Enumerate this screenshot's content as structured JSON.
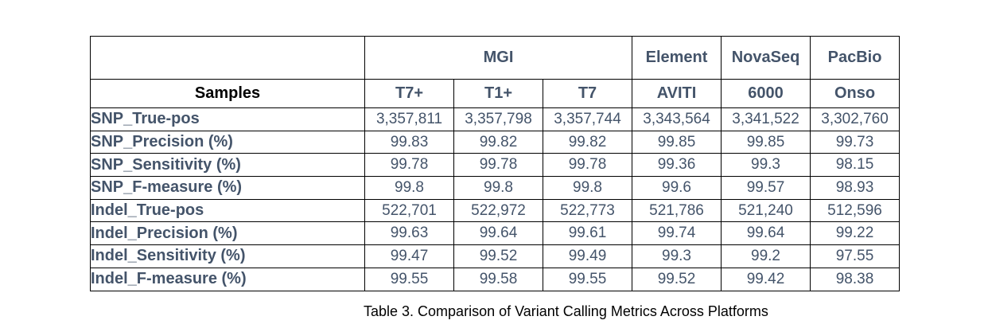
{
  "table": {
    "corner_label": "Samples",
    "platform_headers": {
      "mgi": "MGI",
      "element": "Element",
      "novaseq": "NovaSeq",
      "pacbio": "PacBio"
    },
    "sample_headers": [
      "T7+",
      "T1+",
      "T7",
      "AVITI",
      "6000",
      "Onso"
    ],
    "rows": [
      {
        "label": "SNP_True-pos",
        "values": [
          "3,357,811",
          "3,357,798",
          "3,357,744",
          "3,343,564",
          "3,341,522",
          "3,302,760"
        ]
      },
      {
        "label": "SNP_Precision (%)",
        "values": [
          "99.83",
          "99.82",
          "99.82",
          "99.85",
          "99.85",
          "99.73"
        ]
      },
      {
        "label": "SNP_Sensitivity (%)",
        "values": [
          "99.78",
          "99.78",
          "99.78",
          "99.36",
          "99.3",
          "98.15"
        ]
      },
      {
        "label": "SNP_F-measure (%)",
        "values": [
          "99.8",
          "99.8",
          "99.8",
          "99.6",
          "99.57",
          "98.93"
        ]
      },
      {
        "label": "Indel_True-pos",
        "values": [
          "522,701",
          "522,972",
          "522,773",
          "521,786",
          "521,240",
          "512,596"
        ]
      },
      {
        "label": "Indel_Precision (%)",
        "values": [
          "99.63",
          "99.64",
          "99.61",
          "99.74",
          "99.64",
          "99.22"
        ]
      },
      {
        "label": "Indel_Sensitivity (%)",
        "values": [
          "99.47",
          "99.52",
          "99.49",
          "99.3",
          "99.2",
          "97.55"
        ]
      },
      {
        "label": "Indel_F-measure (%)",
        "values": [
          "99.55",
          "99.58",
          "99.55",
          "99.52",
          "99.42",
          "98.38"
        ]
      }
    ]
  },
  "caption": "Table 3. Comparison of Variant Calling Metrics Across Platforms",
  "colors": {
    "table_text": "#44546A",
    "samples_text": "#000000",
    "caption_text": "#000000",
    "border": "#000000",
    "background": "#FFFFFF"
  }
}
